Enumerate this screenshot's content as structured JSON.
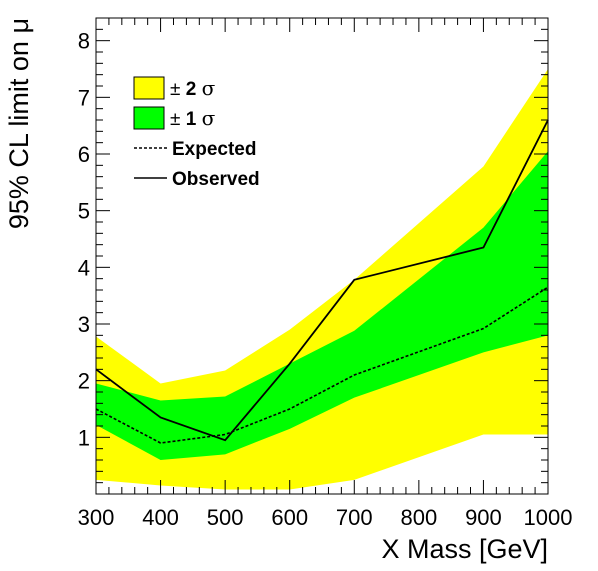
{
  "chart_data": {
    "type": "line",
    "xlabel": "X Mass [GeV]",
    "ylabel": "95% CL limit on μ",
    "xlim": [
      300,
      1000
    ],
    "ylim": [
      0,
      8.4
    ],
    "x": [
      300,
      400,
      500,
      600,
      700,
      900,
      1000
    ],
    "x_ticks": [
      300,
      400,
      500,
      600,
      700,
      800,
      900,
      1000
    ],
    "y_ticks": [
      1,
      2,
      3,
      4,
      5,
      6,
      7,
      8
    ],
    "grid": false,
    "legend_position": "top-left",
    "series": [
      {
        "name": "± 2 σ",
        "kind": "band",
        "color": "#ffff00",
        "lower": [
          0.25,
          0.15,
          0.08,
          0.08,
          0.25,
          1.05,
          1.05
        ],
        "upper": [
          2.78,
          1.95,
          2.18,
          2.9,
          3.78,
          5.78,
          7.5
        ]
      },
      {
        "name": "± 1 σ",
        "kind": "band",
        "color": "#00ff00",
        "lower": [
          1.22,
          0.6,
          0.7,
          1.15,
          1.7,
          2.5,
          2.8
        ],
        "upper": [
          1.95,
          1.65,
          1.72,
          2.3,
          2.88,
          4.7,
          6.05
        ]
      },
      {
        "name": "Expected",
        "kind": "line",
        "style": "dashed",
        "color": "#000000",
        "values": [
          1.5,
          0.9,
          1.05,
          1.5,
          2.1,
          2.92,
          3.65
        ]
      },
      {
        "name": "Observed",
        "kind": "line",
        "style": "solid",
        "color": "#000000",
        "values": [
          2.2,
          1.35,
          0.95,
          2.3,
          3.78,
          4.35,
          6.6
        ]
      }
    ]
  }
}
